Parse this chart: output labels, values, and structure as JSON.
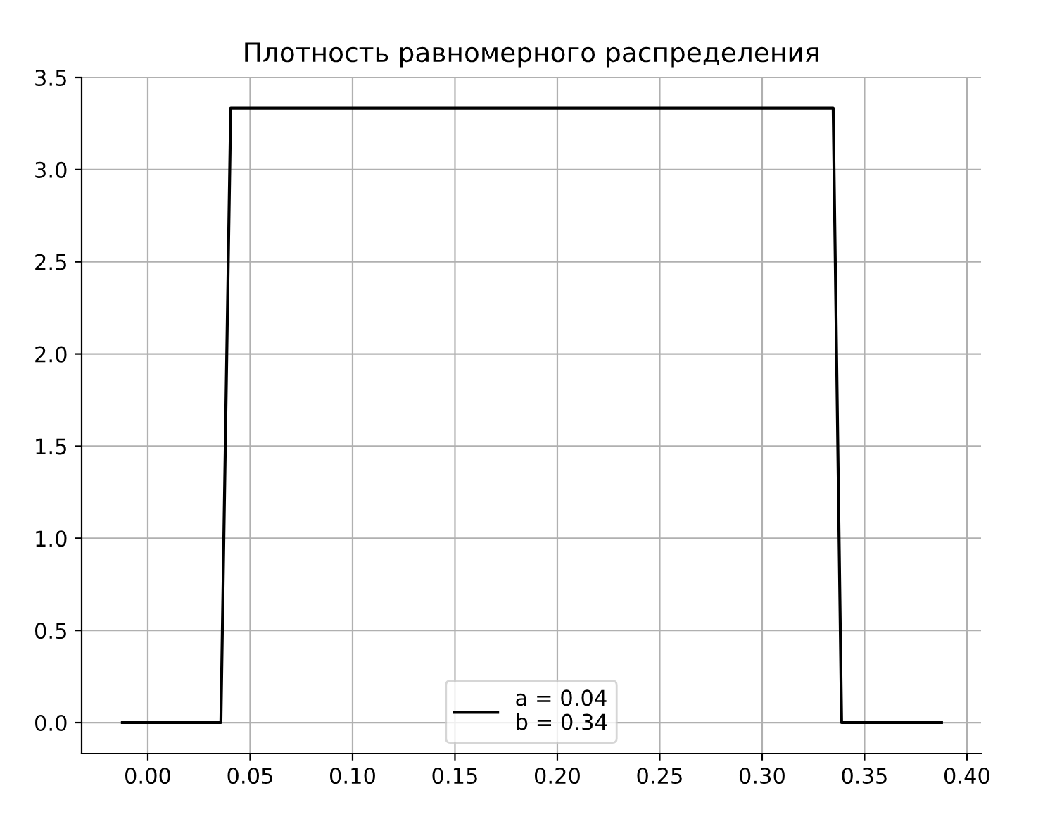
{
  "chart_data": {
    "type": "line",
    "title": "Плотность равномерного распределения",
    "x": [
      -0.0124,
      0.0357,
      0.0405,
      0.3347,
      0.3388,
      0.3876
    ],
    "series": [
      {
        "name": "a = 0.04\nb = 0.34",
        "color": "#000000",
        "values": [
          0,
          0,
          3.333,
          3.333,
          0,
          0
        ]
      }
    ],
    "xlim": [
      -0.0323,
      0.4069
    ],
    "ylim": [
      -0.168,
      3.5
    ],
    "xticks": [
      {
        "value": 0,
        "label": "0.00"
      },
      {
        "value": 0.05,
        "label": "0.05"
      },
      {
        "value": 0.1,
        "label": "0.10"
      },
      {
        "value": 0.15,
        "label": "0.15"
      },
      {
        "value": 0.2,
        "label": "0.20"
      },
      {
        "value": 0.25,
        "label": "0.25"
      },
      {
        "value": 0.3,
        "label": "0.30"
      },
      {
        "value": 0.35,
        "label": "0.35"
      },
      {
        "value": 0.4,
        "label": "0.40"
      }
    ],
    "yticks": [
      {
        "value": 0,
        "label": "0.0"
      },
      {
        "value": 0.5,
        "label": "0.5"
      },
      {
        "value": 1,
        "label": "1.0"
      },
      {
        "value": 1.5,
        "label": "1.5"
      },
      {
        "value": 2,
        "label": "2.0"
      },
      {
        "value": 2.5,
        "label": "2.5"
      },
      {
        "value": 3,
        "label": "3.0"
      },
      {
        "value": 3.5,
        "label": "3.5"
      }
    ],
    "grid": true,
    "legend": "bottom",
    "marker": "none",
    "line_style": "solid"
  }
}
